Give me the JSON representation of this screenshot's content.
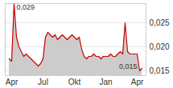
{
  "chart_data": {
    "type": "area",
    "color": "#cc0000",
    "categories": [
      null,
      "Apr",
      null,
      null,
      null,
      null,
      null,
      null,
      null,
      null,
      null,
      null,
      null,
      null,
      "Jul",
      null,
      null,
      null,
      null,
      null,
      null,
      null,
      null,
      null,
      null,
      null,
      null,
      "Okt",
      null,
      null,
      null,
      null,
      null,
      null,
      null,
      null,
      null,
      null,
      null,
      null,
      "Jan",
      null,
      null,
      null,
      null,
      null,
      null,
      null,
      null,
      null,
      null,
      null,
      null,
      "Apr",
      null,
      null
    ],
    "values": [
      0.0175,
      0.017,
      0.029,
      0.022,
      0.02,
      0.019,
      0.018,
      0.0185,
      0.018,
      0.0175,
      0.017,
      0.0165,
      0.016,
      0.0165,
      0.0175,
      0.022,
      0.023,
      0.0225,
      0.022,
      0.0225,
      0.0215,
      0.022,
      0.0225,
      0.022,
      0.0215,
      0.022,
      0.0225,
      0.022,
      0.0215,
      0.022,
      0.0195,
      0.018,
      0.0175,
      0.018,
      0.018,
      0.0185,
      0.018,
      0.018,
      0.0175,
      0.018,
      0.018,
      0.018,
      0.0185,
      0.018,
      0.018,
      0.0185,
      0.019,
      0.0185,
      0.025,
      0.019,
      0.0185,
      0.0185,
      0.0185,
      0.0185,
      0.015,
      0.0155
    ],
    "ylim": [
      0.014,
      0.029
    ],
    "yticks": [
      {
        "value": 0.015,
        "label": "0,015"
      },
      {
        "value": 0.02,
        "label": "0,020"
      },
      {
        "value": 0.025,
        "label": "0,025"
      }
    ],
    "grid": true,
    "annotations": [
      {
        "text": "0,029",
        "x": 2,
        "y": 0.029
      },
      {
        "text": "0,015",
        "x": 54,
        "y": 0.015
      }
    ]
  }
}
